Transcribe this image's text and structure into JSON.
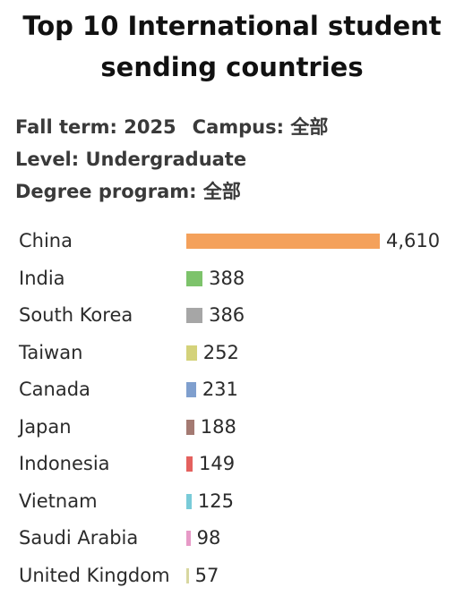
{
  "title_line1": "Top 10 International student",
  "title_line2": "sending countries",
  "filters": {
    "fall_term": "Fall term: 2025",
    "campus": "Campus: 全部",
    "level": "Level: Undergraduate",
    "degree_program": "Degree program: 全部"
  },
  "chart_data": {
    "type": "bar",
    "orientation": "horizontal",
    "categories": [
      "China",
      "India",
      "South Korea",
      "Taiwan",
      "Canada",
      "Japan",
      "Indonesia",
      "Vietnam",
      "Saudi Arabia",
      "United Kingdom"
    ],
    "values": [
      4610,
      388,
      386,
      252,
      231,
      188,
      149,
      125,
      98,
      57
    ],
    "value_labels": [
      "4,610",
      "388",
      "386",
      "252",
      "231",
      "188",
      "149",
      "125",
      "98",
      "57"
    ],
    "colors": [
      "#f4a15b",
      "#7dc36b",
      "#a6a6a6",
      "#d4d27a",
      "#7f9fce",
      "#a47a72",
      "#e4615e",
      "#79cbd8",
      "#e79ac7",
      "#d8d7a0"
    ],
    "xlim": [
      0,
      4610
    ],
    "grid": false
  }
}
